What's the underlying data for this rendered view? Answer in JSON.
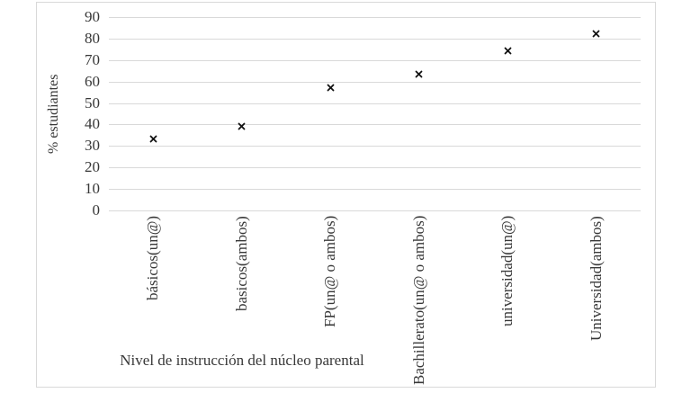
{
  "chart_data": {
    "type": "scatter",
    "title": "",
    "xlabel": "Nivel de instrucción del núcleo parental",
    "ylabel": "% estudiantes",
    "categories": [
      "básicos(un@)",
      "basicos(ambos)",
      "FP(un@ o ambos)",
      "Bachillerato(un@ o ambos)",
      "universidad(un@)",
      "Universidad(ambos)"
    ],
    "values": [
      35,
      41,
      59,
      65,
      76,
      84
    ],
    "ylim": [
      0,
      90
    ],
    "yticks": [
      0,
      10,
      20,
      30,
      40,
      50,
      60,
      70,
      80,
      90
    ],
    "grid": "horizontal",
    "legend": "none",
    "marker": "x",
    "colors": {
      "marker": "#111111",
      "gridline": "#d9d9d9",
      "frame_border": "#d9d9d9",
      "text": "#383838",
      "background": "#ffffff"
    }
  }
}
